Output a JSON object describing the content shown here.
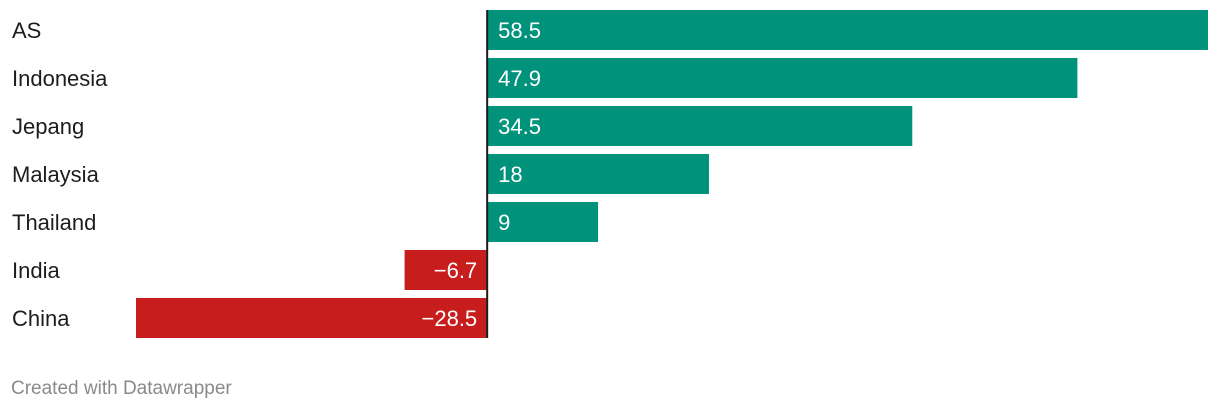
{
  "chart_data": {
    "type": "bar",
    "orientation": "horizontal",
    "categories": [
      "AS",
      "Indonesia",
      "Jepang",
      "Malaysia",
      "Thailand",
      "India",
      "China"
    ],
    "values": [
      58.5,
      47.9,
      34.5,
      18,
      9,
      -6.7,
      -28.5
    ],
    "value_labels": [
      "58.5",
      "47.9",
      "34.5",
      "18",
      "9",
      "−6.7",
      "−28.5"
    ],
    "xlim": [
      -28.5,
      58.5
    ],
    "colors": {
      "positive": "#00927a",
      "negative": "#c71e1d",
      "zero_line": "#1d1d1d"
    },
    "grid": false,
    "legend": "none"
  },
  "footer": {
    "credit": "Created with Datawrapper"
  }
}
